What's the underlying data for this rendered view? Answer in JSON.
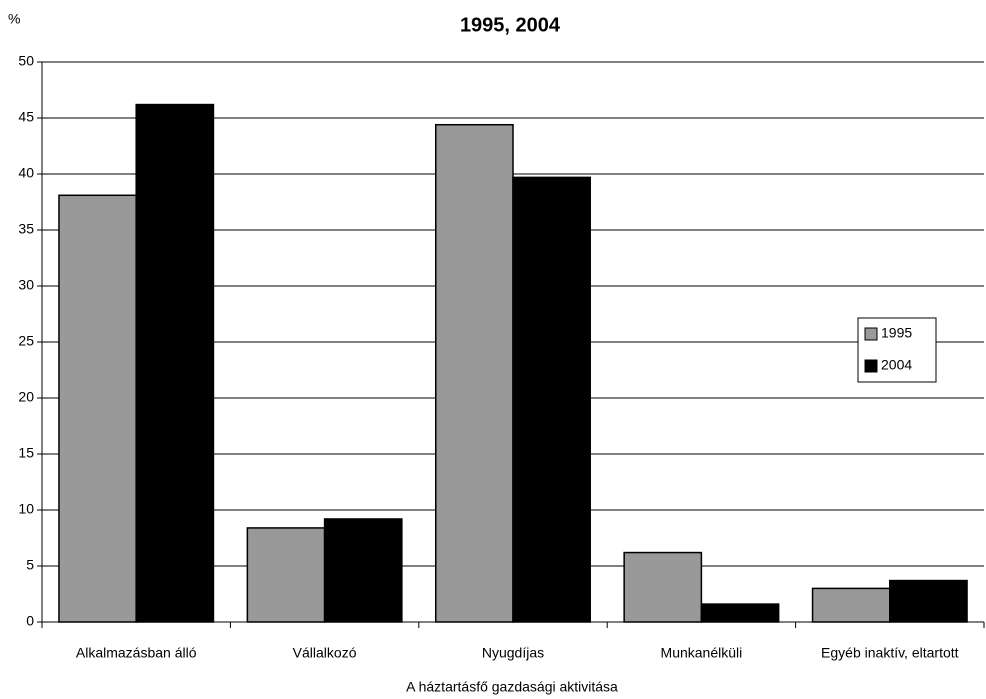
{
  "chart_data": {
    "type": "bar",
    "title": "1995, 2004",
    "y_label": "%",
    "x_label": "A háztartásfő gazdasági aktivitása",
    "categories": [
      "Alkalmazásban álló",
      "Vállalkozó",
      "Nyugdíjas",
      "Munkanélküli",
      "Egyéb inaktív, eltartott"
    ],
    "series": [
      {
        "name": "1995",
        "color": "#999999",
        "values": [
          38.1,
          8.4,
          44.4,
          6.2,
          3.0
        ]
      },
      {
        "name": "2004",
        "color": "#000000",
        "values": [
          46.2,
          9.2,
          39.7,
          1.6,
          3.7
        ]
      }
    ],
    "ylim": [
      0,
      50
    ],
    "yticks": [
      0,
      5,
      10,
      15,
      20,
      25,
      30,
      35,
      40,
      45,
      50
    ],
    "grid": true,
    "legend": "right"
  }
}
